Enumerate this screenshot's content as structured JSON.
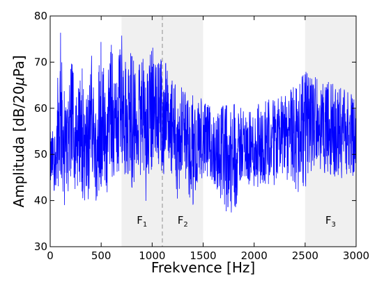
{
  "chart_data": {
    "type": "line",
    "xlabel": "Frekvence [Hz]",
    "ylabel_prefix": "Amplituda [dB/20",
    "ylabel_mu": "μ",
    "ylabel_suffix": "Pa]",
    "xlim": [
      0,
      3000
    ],
    "ylim": [
      30,
      80
    ],
    "x_ticks": [
      0,
      500,
      1000,
      1500,
      2000,
      2500,
      3000
    ],
    "y_ticks": [
      30,
      40,
      50,
      60,
      70,
      80
    ],
    "grid": false,
    "line_color": "#0000ff",
    "band_color": "#f0f0f0",
    "divider_color": "#a0a0a0",
    "bands": [
      {
        "name": "F",
        "sub": "1",
        "x_start": 700,
        "x_end": 1100
      },
      {
        "name": "F",
        "sub": "2",
        "x_start": 1100,
        "x_end": 1500
      },
      {
        "name": "F",
        "sub": "3",
        "x_start": 2500,
        "x_end": 3000
      }
    ],
    "divider_x": 1100,
    "envelope": {
      "x": [
        0,
        50,
        100,
        150,
        200,
        250,
        300,
        350,
        400,
        450,
        500,
        550,
        600,
        650,
        700,
        750,
        800,
        850,
        900,
        950,
        1000,
        1050,
        1100,
        1150,
        1200,
        1250,
        1300,
        1350,
        1400,
        1450,
        1500,
        1600,
        1700,
        1800,
        1900,
        2000,
        2100,
        2200,
        2300,
        2400,
        2500,
        2600,
        2700,
        2800,
        2900,
        3000
      ],
      "upper": [
        56,
        57,
        78,
        60,
        75,
        61,
        72,
        62,
        73,
        63,
        75,
        64,
        77,
        66,
        77,
        68,
        73,
        69,
        72,
        68,
        74,
        69,
        75,
        68,
        67,
        64,
        65,
        62,
        64,
        62,
        63,
        61,
        61,
        61,
        60,
        61,
        62,
        62,
        63,
        65,
        68,
        67,
        66,
        65,
        64,
        63
      ],
      "lower": [
        41,
        42,
        40,
        38,
        45,
        40,
        42,
        36,
        44,
        40,
        43,
        41,
        45,
        44,
        43,
        46,
        42,
        44,
        46,
        38,
        47,
        48,
        45,
        45,
        46,
        40,
        45,
        42,
        38,
        44,
        43,
        42,
        37,
        36,
        45,
        41,
        42,
        43,
        45,
        41,
        42,
        48,
        45,
        43,
        44,
        46
      ]
    }
  }
}
